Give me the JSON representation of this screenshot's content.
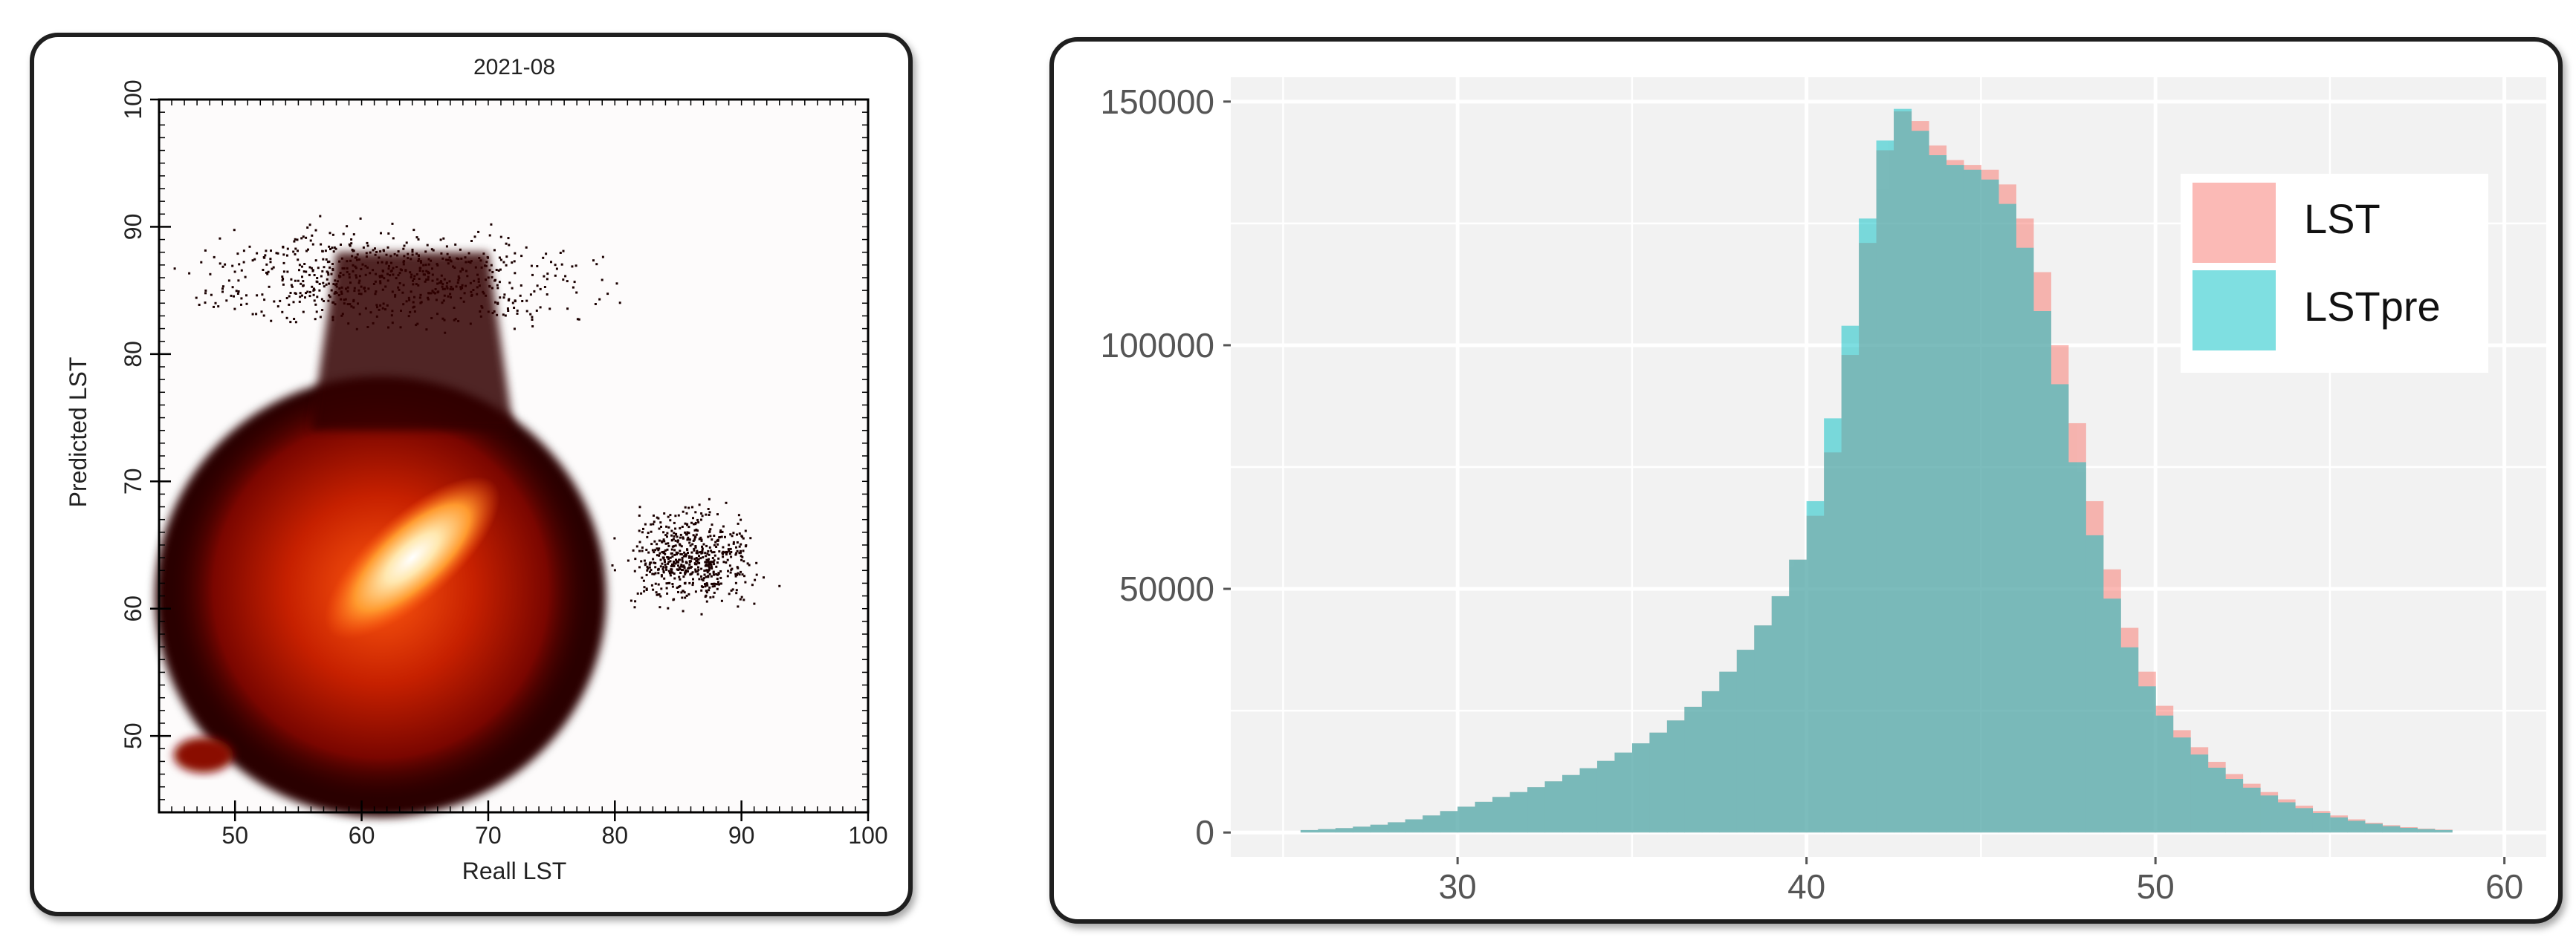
{
  "chart_data": [
    {
      "type": "scatter",
      "title": "2021-08",
      "xlabel": "Reall LST",
      "ylabel": "Predicted LST",
      "xlim": [
        44,
        100
      ],
      "ylim": [
        44,
        100
      ],
      "xticks": [
        "50",
        "60",
        "70",
        "80",
        "90",
        "100"
      ],
      "yticks": [
        "50",
        "60",
        "70",
        "80",
        "90",
        "100"
      ],
      "colormap": [
        "#000000",
        "#5a0000",
        "#b01400",
        "#e84a00",
        "#ff9a2e",
        "#ffe8b0",
        "#ffffff"
      ],
      "density_center": [
        64,
        64
      ],
      "cluster": {
        "x_range": [
          45,
          78
        ],
        "y_range": [
          45,
          78
        ]
      },
      "secondary_cluster": [
        47.5,
        48.5
      ]
    },
    {
      "type": "bar",
      "subtype": "overlapping-histogram",
      "xlabel": "",
      "ylabel": "",
      "xlim": [
        23.5,
        61.2
      ],
      "ylim": [
        -5000,
        155000
      ],
      "xticks": [
        "30",
        "40",
        "50",
        "60"
      ],
      "yticks": [
        "0",
        "50000",
        "100000",
        "150000"
      ],
      "grid": true,
      "legend_position": "top-right",
      "bin_width": 0.5,
      "x_start": 25.5,
      "series": [
        {
          "name": "LST",
          "color": "#F8766D",
          "values": [
            500,
            700,
            900,
            1200,
            1600,
            2100,
            2700,
            3500,
            4400,
            5300,
            6300,
            7300,
            8300,
            9300,
            10500,
            11800,
            13200,
            14700,
            16400,
            18300,
            20500,
            23000,
            25800,
            29000,
            33000,
            37500,
            42500,
            48500,
            56000,
            65000,
            78000,
            98000,
            121000,
            140000,
            148000,
            146000,
            141000,
            138000,
            137000,
            136000,
            133000,
            126000,
            115000,
            100000,
            84000,
            68000,
            54000,
            42000,
            33000,
            26000,
            21000,
            17500,
            14500,
            12000,
            10000,
            8300,
            6800,
            5500,
            4400,
            3500,
            2700,
            2000,
            1500,
            1100,
            800,
            600
          ]
        },
        {
          "name": "LSTpre",
          "color": "#00BFC4",
          "values": [
            500,
            700,
            900,
            1200,
            1600,
            2100,
            2700,
            3500,
            4400,
            5300,
            6300,
            7300,
            8300,
            9300,
            10500,
            11800,
            13200,
            14700,
            16400,
            18300,
            20500,
            23000,
            25800,
            29000,
            33000,
            37500,
            42500,
            48500,
            56000,
            68000,
            85000,
            104000,
            126000,
            142000,
            148500,
            144000,
            139000,
            137000,
            136000,
            134000,
            129000,
            120000,
            107000,
            92000,
            76000,
            61000,
            48000,
            38000,
            30000,
            24000,
            19500,
            16000,
            13300,
            11000,
            9200,
            7600,
            6200,
            5000,
            4000,
            3100,
            2400,
            1800,
            1300,
            950,
            700,
            500
          ]
        }
      ]
    }
  ]
}
